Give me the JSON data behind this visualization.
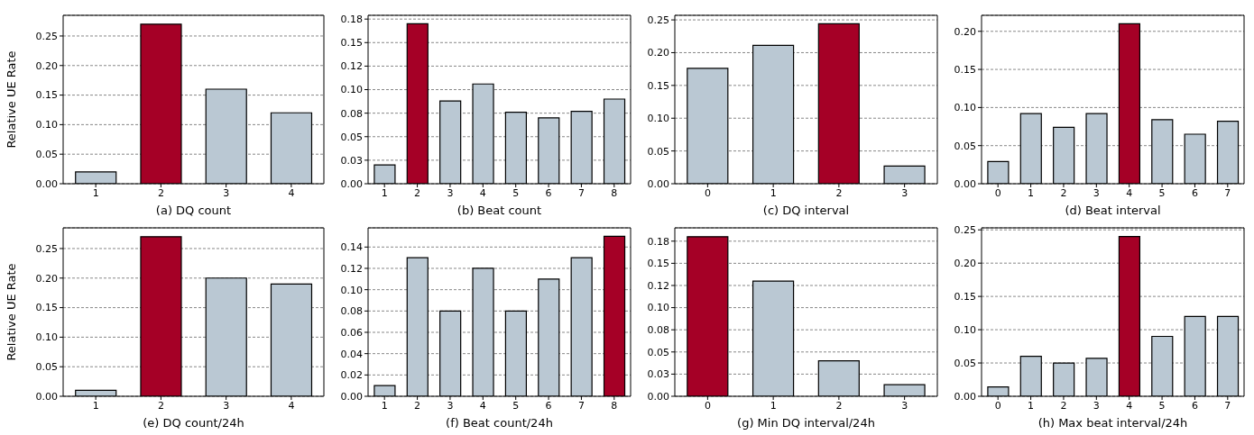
{
  "chart_data": [
    {
      "type": "bar",
      "xlabel": "(a) DQ count",
      "ylabel": "Relative UE Rate",
      "categories": [
        "1",
        "2",
        "3",
        "4"
      ],
      "values": [
        0.02,
        0.27,
        0.16,
        0.12
      ],
      "colors": [
        "#bac8d3",
        "#a50026",
        "#bac8d3",
        "#bac8d3"
      ],
      "ylim": [
        0,
        0.285
      ],
      "yticks": [
        {
          "value": 0,
          "label": "0.00"
        },
        {
          "value": 0.05,
          "label": "0.05"
        },
        {
          "value": 0.1,
          "label": "0.10"
        },
        {
          "value": 0.15,
          "label": "0.15"
        },
        {
          "value": 0.2,
          "label": "0.20"
        },
        {
          "value": 0.25,
          "label": "0.25"
        }
      ],
      "grid": "y"
    },
    {
      "type": "bar",
      "xlabel": "(b) Beat count",
      "categories": [
        "1",
        "2",
        "3",
        "4",
        "5",
        "6",
        "7",
        "8"
      ],
      "values": [
        0.02,
        0.17,
        0.088,
        0.106,
        0.076,
        0.07,
        0.077,
        0.09
      ],
      "colors": [
        "#bac8d3",
        "#a50026",
        "#bac8d3",
        "#bac8d3",
        "#bac8d3",
        "#bac8d3",
        "#bac8d3",
        "#bac8d3"
      ],
      "ylim": [
        0,
        0.179
      ],
      "yticks": [
        {
          "value": 0,
          "label": "0.00"
        },
        {
          "value": 0.025,
          "label": "0.03"
        },
        {
          "value": 0.05,
          "label": "0.05"
        },
        {
          "value": 0.075,
          "label": "0.08"
        },
        {
          "value": 0.1,
          "label": "0.10"
        },
        {
          "value": 0.125,
          "label": "0.12"
        },
        {
          "value": 0.15,
          "label": "0.15"
        },
        {
          "value": 0.175,
          "label": "0.18"
        }
      ],
      "grid": "y"
    },
    {
      "type": "bar",
      "xlabel": "(c) DQ interval",
      "categories": [
        "0",
        "1",
        "2",
        "3"
      ],
      "values": [
        0.176,
        0.211,
        0.244,
        0.027
      ],
      "colors": [
        "#bac8d3",
        "#bac8d3",
        "#a50026",
        "#bac8d3"
      ],
      "ylim": [
        0,
        0.257
      ],
      "yticks": [
        {
          "value": 0,
          "label": "0.00"
        },
        {
          "value": 0.05,
          "label": "0.05"
        },
        {
          "value": 0.1,
          "label": "0.10"
        },
        {
          "value": 0.15,
          "label": "0.15"
        },
        {
          "value": 0.2,
          "label": "0.20"
        },
        {
          "value": 0.25,
          "label": "0.25"
        }
      ],
      "grid": "y"
    },
    {
      "type": "bar",
      "xlabel": "(d) Beat interval",
      "categories": [
        "0",
        "1",
        "2",
        "3",
        "4",
        "5",
        "6",
        "7"
      ],
      "values": [
        0.029,
        0.092,
        0.074,
        0.092,
        0.21,
        0.084,
        0.065,
        0.082
      ],
      "colors": [
        "#bac8d3",
        "#bac8d3",
        "#bac8d3",
        "#bac8d3",
        "#a50026",
        "#bac8d3",
        "#bac8d3",
        "#bac8d3"
      ],
      "ylim": [
        0,
        0.221
      ],
      "yticks": [
        {
          "value": 0,
          "label": "0.00"
        },
        {
          "value": 0.05,
          "label": "0.05"
        },
        {
          "value": 0.1,
          "label": "0.10"
        },
        {
          "value": 0.15,
          "label": "0.15"
        },
        {
          "value": 0.2,
          "label": "0.20"
        }
      ],
      "grid": "y"
    },
    {
      "type": "bar",
      "xlabel": "(e) DQ count/24h",
      "ylabel": "Relative UE Rate",
      "categories": [
        "1",
        "2",
        "3",
        "4"
      ],
      "values": [
        0.01,
        0.27,
        0.2,
        0.19
      ],
      "colors": [
        "#bac8d3",
        "#a50026",
        "#bac8d3",
        "#bac8d3"
      ],
      "ylim": [
        0,
        0.285
      ],
      "yticks": [
        {
          "value": 0,
          "label": "0.00"
        },
        {
          "value": 0.05,
          "label": "0.05"
        },
        {
          "value": 0.1,
          "label": "0.10"
        },
        {
          "value": 0.15,
          "label": "0.15"
        },
        {
          "value": 0.2,
          "label": "0.20"
        },
        {
          "value": 0.25,
          "label": "0.25"
        }
      ],
      "grid": "y"
    },
    {
      "type": "bar",
      "xlabel": "(f) Beat count/24h",
      "categories": [
        "1",
        "2",
        "3",
        "4",
        "5",
        "6",
        "7",
        "8"
      ],
      "values": [
        0.01,
        0.13,
        0.08,
        0.12,
        0.08,
        0.11,
        0.13,
        0.15
      ],
      "colors": [
        "#bac8d3",
        "#bac8d3",
        "#bac8d3",
        "#bac8d3",
        "#bac8d3",
        "#bac8d3",
        "#bac8d3",
        "#a50026"
      ],
      "ylim": [
        0,
        0.158
      ],
      "yticks": [
        {
          "value": 0,
          "label": "0.00"
        },
        {
          "value": 0.02,
          "label": "0.02"
        },
        {
          "value": 0.04,
          "label": "0.04"
        },
        {
          "value": 0.06,
          "label": "0.06"
        },
        {
          "value": 0.08,
          "label": "0.08"
        },
        {
          "value": 0.1,
          "label": "0.10"
        },
        {
          "value": 0.12,
          "label": "0.12"
        },
        {
          "value": 0.14,
          "label": "0.14"
        }
      ],
      "grid": "y"
    },
    {
      "type": "bar",
      "xlabel": "(g) Min DQ interval/24h",
      "categories": [
        "0",
        "1",
        "2",
        "3"
      ],
      "values": [
        0.18,
        0.13,
        0.04,
        0.013
      ],
      "colors": [
        "#a50026",
        "#bac8d3",
        "#bac8d3",
        "#bac8d3"
      ],
      "ylim": [
        0,
        0.19
      ],
      "yticks": [
        {
          "value": 0,
          "label": "0.00"
        },
        {
          "value": 0.025,
          "label": "0.03"
        },
        {
          "value": 0.05,
          "label": "0.05"
        },
        {
          "value": 0.075,
          "label": "0.08"
        },
        {
          "value": 0.1,
          "label": "0.10"
        },
        {
          "value": 0.125,
          "label": "0.12"
        },
        {
          "value": 0.15,
          "label": "0.15"
        },
        {
          "value": 0.175,
          "label": "0.18"
        }
      ],
      "grid": "y"
    },
    {
      "type": "bar",
      "xlabel": "(h) Max beat interval/24h",
      "categories": [
        "0",
        "1",
        "2",
        "3",
        "4",
        "5",
        "6",
        "7"
      ],
      "values": [
        0.014,
        0.06,
        0.05,
        0.057,
        0.24,
        0.09,
        0.12,
        0.12
      ],
      "colors": [
        "#bac8d3",
        "#bac8d3",
        "#bac8d3",
        "#bac8d3",
        "#a50026",
        "#bac8d3",
        "#bac8d3",
        "#bac8d3"
      ],
      "ylim": [
        0,
        0.253
      ],
      "yticks": [
        {
          "value": 0,
          "label": "0.00"
        },
        {
          "value": 0.05,
          "label": "0.05"
        },
        {
          "value": 0.1,
          "label": "0.10"
        },
        {
          "value": 0.15,
          "label": "0.15"
        },
        {
          "value": 0.2,
          "label": "0.20"
        },
        {
          "value": 0.25,
          "label": "0.25"
        }
      ],
      "grid": "y"
    }
  ]
}
